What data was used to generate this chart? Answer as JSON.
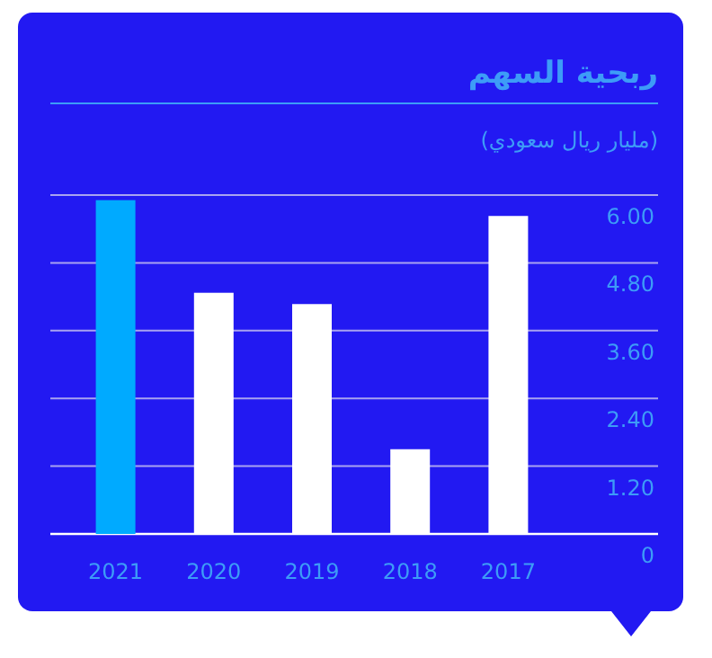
{
  "chart_data": {
    "type": "bar",
    "title": "ربحية السهم",
    "subtitle": "(مليار ريال سعودي)",
    "categories": [
      "2021",
      "2020",
      "2019",
      "2018",
      "2017"
    ],
    "values": [
      5.91,
      4.27,
      4.07,
      1.5,
      5.63
    ],
    "colors": [
      "#00aaff",
      "#ffffff",
      "#ffffff",
      "#ffffff",
      "#ffffff"
    ],
    "ylim": [
      0,
      6
    ],
    "yticks": [
      0,
      {
        "value": 1.2,
        "label": "1.20"
      },
      {
        "value": 2.4,
        "label": "2.40"
      },
      {
        "value": 3.6,
        "label": "3.60"
      },
      {
        "value": 4.8,
        "label": "4.80"
      },
      {
        "value": 6,
        "label": "6.00"
      }
    ],
    "grid": "y"
  }
}
